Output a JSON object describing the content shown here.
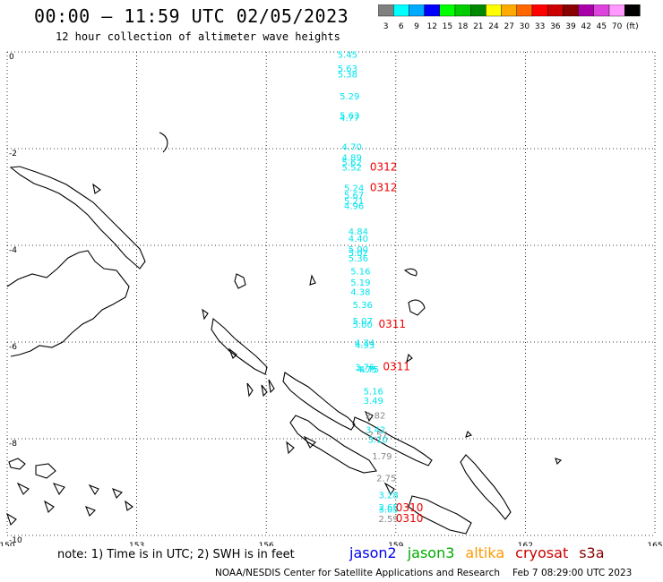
{
  "header": {
    "title": "00:00 – 11:59 UTC 02/05/2023",
    "subtitle": "12 hour collection of altimeter wave heights"
  },
  "colorbar": {
    "colors": [
      "#808080",
      "#00ffff",
      "#00aaff",
      "#0000ff",
      "#00ff00",
      "#00cc00",
      "#008800",
      "#ffff00",
      "#ffaa00",
      "#ff6600",
      "#ff0000",
      "#cc0000",
      "#880000",
      "#aa00aa",
      "#dd44dd",
      "#ff99ff",
      "#000000"
    ],
    "labels": [
      "3",
      "6",
      "9",
      "12",
      "15",
      "18",
      "21",
      "24",
      "27",
      "30",
      "33",
      "36",
      "39",
      "42",
      "45",
      "70",
      "(ft)"
    ]
  },
  "axes": {
    "x_ticks": [
      "150",
      "153",
      "156",
      "159",
      "162",
      "165"
    ],
    "y_ticks": [
      "0",
      "-2",
      "-4",
      "-6",
      "-8",
      "-10"
    ]
  },
  "observations": [
    {
      "text": "5.45",
      "lon": 157.65,
      "lat": -0.12,
      "color": "#00e5ee"
    },
    {
      "text": "5.63",
      "lon": 157.65,
      "lat": -0.41,
      "color": "#00e5ee"
    },
    {
      "text": "5.38",
      "lon": 157.65,
      "lat": -0.53,
      "color": "#00e5ee"
    },
    {
      "text": "5.29",
      "lon": 157.7,
      "lat": -0.98,
      "color": "#00e5ee"
    },
    {
      "text": "5.63",
      "lon": 157.7,
      "lat": -1.38,
      "color": "#00e5ee"
    },
    {
      "text": "4.77",
      "lon": 157.7,
      "lat": -1.43,
      "color": "#00e5ee"
    },
    {
      "text": "4.70",
      "lon": 157.75,
      "lat": -2.03,
      "color": "#00e5ee"
    },
    {
      "text": "4.89",
      "lon": 157.75,
      "lat": -2.25,
      "color": "#00e5ee"
    },
    {
      "text": "5.62",
      "lon": 157.75,
      "lat": -2.35,
      "color": "#00e5ee"
    },
    {
      "text": "5.52",
      "lon": 157.75,
      "lat": -2.45,
      "color": "#00e5ee"
    },
    {
      "text": "5.24",
      "lon": 157.8,
      "lat": -2.88,
      "color": "#00e5ee"
    },
    {
      "text": "5.67",
      "lon": 157.8,
      "lat": -3.03,
      "color": "#00e5ee"
    },
    {
      "text": "5.21",
      "lon": 157.8,
      "lat": -3.15,
      "color": "#00e5ee"
    },
    {
      "text": "4.96",
      "lon": 157.8,
      "lat": -3.25,
      "color": "#00e5ee"
    },
    {
      "text": "4.84",
      "lon": 157.9,
      "lat": -3.78,
      "color": "#00e5ee"
    },
    {
      "text": "4.40",
      "lon": 157.9,
      "lat": -3.93,
      "color": "#00e5ee"
    },
    {
      "text": "5.00",
      "lon": 157.9,
      "lat": -4.15,
      "color": "#00e5ee"
    },
    {
      "text": "5.02",
      "lon": 157.9,
      "lat": -4.22,
      "color": "#00e5ee"
    },
    {
      "text": "5.36",
      "lon": 157.9,
      "lat": -4.33,
      "color": "#00e5ee"
    },
    {
      "text": "5.16",
      "lon": 157.95,
      "lat": -4.6,
      "color": "#00e5ee"
    },
    {
      "text": "5.19",
      "lon": 157.95,
      "lat": -4.83,
      "color": "#00e5ee"
    },
    {
      "text": "4.38",
      "lon": 157.95,
      "lat": -5.03,
      "color": "#00e5ee"
    },
    {
      "text": "5.36",
      "lon": 158.0,
      "lat": -5.3,
      "color": "#00e5ee"
    },
    {
      "text": "5.07",
      "lon": 158.0,
      "lat": -5.63,
      "color": "#00e5ee"
    },
    {
      "text": "5.00",
      "lon": 158.0,
      "lat": -5.7,
      "color": "#00e5ee"
    },
    {
      "text": "4.74",
      "lon": 158.05,
      "lat": -6.08,
      "color": "#00e5ee"
    },
    {
      "text": "4.93",
      "lon": 158.05,
      "lat": -6.13,
      "color": "#00e5ee"
    },
    {
      "text": "3.76",
      "lon": 158.05,
      "lat": -6.58,
      "color": "#00e5ee"
    },
    {
      "text": "4.75",
      "lon": 158.1,
      "lat": -6.63,
      "color": "#00e5ee"
    },
    {
      "text": "4.75",
      "lon": 158.15,
      "lat": -6.63,
      "color": "#00e5ee"
    },
    {
      "text": "5.16",
      "lon": 158.25,
      "lat": -7.08,
      "color": "#00e5ee"
    },
    {
      "text": "3.49",
      "lon": 158.25,
      "lat": -7.28,
      "color": "#00e5ee"
    },
    {
      "text": "2.82",
      "lon": 158.3,
      "lat": -7.58,
      "color": "#888888"
    },
    {
      "text": "3.42",
      "lon": 158.3,
      "lat": -7.88,
      "color": "#00e5ee"
    },
    {
      "text": "2.57",
      "lon": 158.35,
      "lat": -7.98,
      "color": "#888888"
    },
    {
      "text": "3.10",
      "lon": 158.35,
      "lat": -8.08,
      "color": "#00e5ee"
    },
    {
      "text": "1.79",
      "lon": 158.45,
      "lat": -8.43,
      "color": "#888888"
    },
    {
      "text": "2.75",
      "lon": 158.55,
      "lat": -8.88,
      "color": "#888888"
    },
    {
      "text": "3.28",
      "lon": 158.6,
      "lat": -9.23,
      "color": "#00e5ee"
    },
    {
      "text": "2.65",
      "lon": 158.6,
      "lat": -9.48,
      "color": "#00e5ee"
    },
    {
      "text": "3.05",
      "lon": 158.6,
      "lat": -9.53,
      "color": "#00e5ee"
    },
    {
      "text": "2.59",
      "lon": 158.6,
      "lat": -9.72,
      "color": "#888888"
    }
  ],
  "passes": [
    {
      "text": "0312",
      "lon": 158.4,
      "lat": -2.45,
      "color": "#ee0000"
    },
    {
      "text": "0312",
      "lon": 158.4,
      "lat": -2.88,
      "color": "#ee0000"
    },
    {
      "text": "0311",
      "lon": 158.6,
      "lat": -5.7,
      "color": "#ee0000"
    },
    {
      "text": "0311",
      "lon": 158.7,
      "lat": -6.58,
      "color": "#ee0000"
    },
    {
      "text": "0310",
      "lon": 159.0,
      "lat": -9.5,
      "color": "#ee0000"
    },
    {
      "text": "0310",
      "lon": 159.0,
      "lat": -9.72,
      "color": "#ee0000"
    }
  ],
  "footer": {
    "note": "note:  1) Time is in UTC; 2) SWH is in feet",
    "satellites": [
      {
        "name": "jason2",
        "color": "#0000ee"
      },
      {
        "name": "jason3",
        "color": "#00aa00"
      },
      {
        "name": "altika",
        "color": "#ff9900"
      },
      {
        "name": "cryosat",
        "color": "#cc0000"
      },
      {
        "name": "s3a",
        "color": "#880000"
      }
    ],
    "credit": "NOAA/NESDIS Center for Satellite Applications and Research",
    "timestamp": "Feb  7 08:29:00 UTC 2023"
  },
  "map_extent": {
    "lon": [
      150,
      165
    ],
    "lat": [
      -10,
      0
    ]
  }
}
